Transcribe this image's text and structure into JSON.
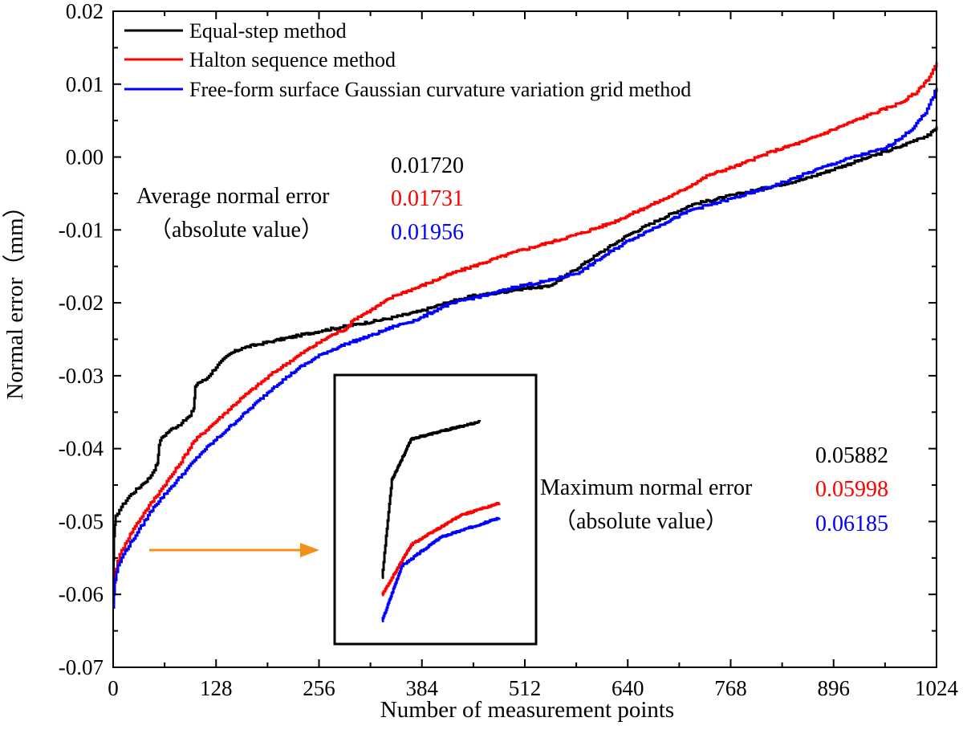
{
  "chart_data": {
    "type": "line",
    "title": "",
    "xlabel": "Number of measurement points",
    "ylabel": "Normal error（mm）",
    "xlim": [
      0,
      1024
    ],
    "ylim": [
      -0.07,
      0.02
    ],
    "xticks": [
      0,
      128,
      256,
      384,
      512,
      640,
      768,
      896,
      1024
    ],
    "xtick_labels": [
      "0",
      "128",
      "256",
      "384",
      "512",
      "640",
      "768",
      "896",
      "1024"
    ],
    "yticks": [
      0.02,
      0.01,
      0.0,
      -0.01,
      -0.02,
      -0.03,
      -0.04,
      -0.05,
      -0.06,
      -0.07
    ],
    "ytick_labels": [
      "0.02",
      "0.01",
      "0.00",
      "-0.01",
      "-0.02",
      "-0.03",
      "-0.04",
      "-0.05",
      "-0.06",
      "-0.07"
    ],
    "grid": false,
    "legend_position": "top-left",
    "series": [
      {
        "name": "Equal-step method",
        "color": "#000000",
        "x": [
          0,
          1,
          3,
          10,
          20,
          35,
          45,
          55,
          57,
          60,
          70,
          85,
          95,
          100,
          102,
          105,
          115,
          130,
          145,
          160,
          180,
          200,
          230,
          260,
          300,
          340,
          380,
          400,
          420,
          450,
          480,
          500,
          520,
          540,
          560,
          600,
          640,
          680,
          720,
          760,
          800,
          860,
          900,
          940,
          980,
          1000,
          1015,
          1024
        ],
        "y": [
          -0.0588,
          -0.052,
          -0.0492,
          -0.048,
          -0.0465,
          -0.045,
          -0.044,
          -0.042,
          -0.0395,
          -0.0385,
          -0.0375,
          -0.0365,
          -0.0355,
          -0.0345,
          -0.0315,
          -0.031,
          -0.0305,
          -0.0285,
          -0.027,
          -0.0262,
          -0.0257,
          -0.0252,
          -0.0245,
          -0.0238,
          -0.023,
          -0.0222,
          -0.0212,
          -0.0205,
          -0.0198,
          -0.019,
          -0.0186,
          -0.0182,
          -0.0179,
          -0.0178,
          -0.0165,
          -0.0135,
          -0.0107,
          -0.0085,
          -0.0065,
          -0.0055,
          -0.0045,
          -0.003,
          -0.0015,
          0.0,
          0.0015,
          0.0025,
          0.003,
          0.0042
        ]
      },
      {
        "name": "Halton sequence method",
        "color": "#ff0000",
        "x": [
          0,
          3,
          8,
          15,
          25,
          40,
          60,
          80,
          100,
          130,
          160,
          200,
          240,
          270,
          290,
          300,
          320,
          350,
          380,
          420,
          460,
          500,
          540,
          580,
          620,
          660,
          700,
          740,
          780,
          820,
          860,
          900,
          940,
          980,
          1000,
          1015,
          1024
        ],
        "y": [
          -0.06,
          -0.0565,
          -0.0545,
          -0.053,
          -0.051,
          -0.0485,
          -0.0455,
          -0.0425,
          -0.039,
          -0.036,
          -0.033,
          -0.0295,
          -0.0265,
          -0.0245,
          -0.0235,
          -0.0222,
          -0.021,
          -0.019,
          -0.0178,
          -0.016,
          -0.0145,
          -0.013,
          -0.0118,
          -0.0105,
          -0.009,
          -0.007,
          -0.005,
          -0.0025,
          -0.001,
          0.0008,
          0.0022,
          0.004,
          0.0058,
          0.0075,
          0.009,
          0.011,
          0.013
        ]
      },
      {
        "name": "Free-form surface Gaussian curvature variation grid method",
        "color": "#0000ff",
        "x": [
          0,
          2,
          6,
          15,
          30,
          50,
          70,
          90,
          110,
          140,
          170,
          200,
          230,
          260,
          290,
          320,
          350,
          380,
          410,
          440,
          470,
          500,
          540,
          580,
          610,
          640,
          680,
          720,
          760,
          800,
          840,
          880,
          920,
          960,
          990,
          1010,
          1024
        ],
        "y": [
          -0.0618,
          -0.058,
          -0.056,
          -0.054,
          -0.0515,
          -0.048,
          -0.0455,
          -0.043,
          -0.0405,
          -0.0375,
          -0.0345,
          -0.0315,
          -0.029,
          -0.027,
          -0.0256,
          -0.0245,
          -0.0232,
          -0.0222,
          -0.0205,
          -0.0195,
          -0.0188,
          -0.0178,
          -0.017,
          -0.0158,
          -0.0136,
          -0.0115,
          -0.0093,
          -0.0072,
          -0.006,
          -0.0047,
          -0.0032,
          -0.0015,
          0.0,
          0.0012,
          0.0035,
          0.006,
          0.0095
        ]
      }
    ],
    "annotations": {
      "average": {
        "label_line1": "Average normal error",
        "label_line2": "（absolute value）",
        "values": [
          "0.01720",
          "0.01731",
          "0.01956"
        ]
      },
      "maximum": {
        "label_line1": "Maximum normal error",
        "label_line2": "（absolute value）",
        "values": [
          "0.05882",
          "0.05998",
          "0.06185"
        ]
      }
    },
    "inset": {
      "description": "zoom on the lowest values",
      "arrow_color": "#f39019"
    }
  }
}
